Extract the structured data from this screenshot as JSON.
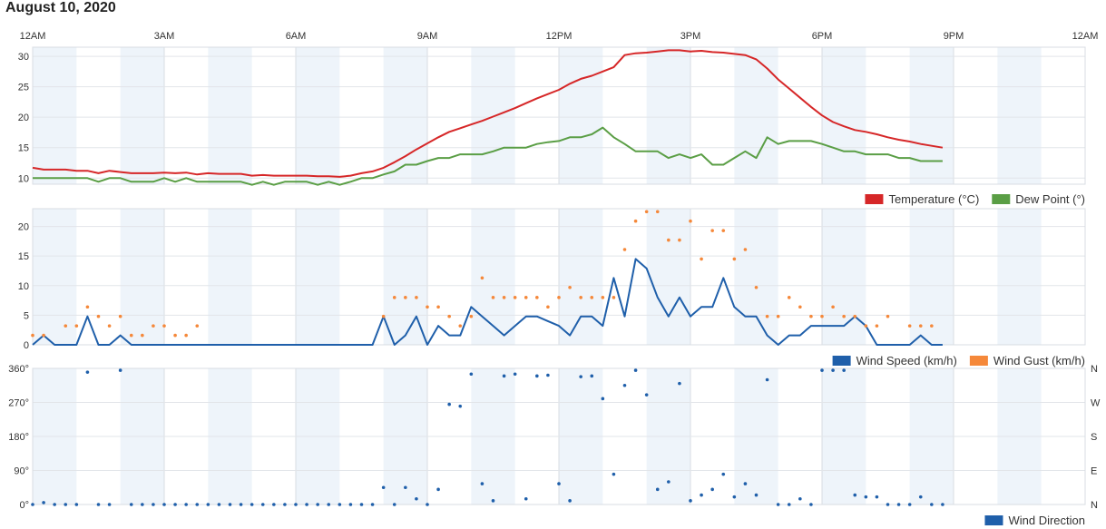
{
  "page": {
    "title": "August 10, 2020"
  },
  "chart_data": [
    {
      "type": "line",
      "panel": "temperature",
      "xlabel": "",
      "ylabel": "",
      "x_tick_labels": [
        "12AM",
        "3AM",
        "6AM",
        "9AM",
        "12PM",
        "3PM",
        "6PM",
        "9PM",
        "12AM"
      ],
      "ylim": [
        9,
        31.5
      ],
      "y_ticks": [
        10,
        15,
        20,
        25,
        30
      ],
      "grid": true,
      "legend": "bottom-right",
      "series": [
        {
          "name": "Temperature (°C)",
          "color": "#d62728",
          "x": [
            0,
            0.25,
            0.5,
            0.75,
            1,
            1.25,
            1.5,
            1.75,
            2,
            2.25,
            2.5,
            2.75,
            3,
            3.25,
            3.5,
            3.75,
            4,
            4.25,
            4.5,
            4.75,
            5,
            5.25,
            5.5,
            5.75,
            6,
            6.25,
            6.5,
            6.75,
            7,
            7.25,
            7.5,
            7.75,
            8,
            8.25,
            8.5,
            8.75,
            9,
            9.25,
            9.5,
            9.75,
            10,
            10.25,
            10.5,
            10.75,
            11,
            11.25,
            11.5,
            11.75,
            12,
            12.25,
            12.5,
            12.75,
            13,
            13.25,
            13.5,
            13.75,
            14,
            14.25,
            14.5,
            14.75,
            15,
            15.25,
            15.5,
            15.75,
            16,
            16.25,
            16.5,
            16.75,
            17,
            17.25,
            17.5,
            17.75,
            18,
            18.25,
            18.5,
            18.75,
            19,
            19.25,
            19.5,
            19.75,
            20,
            20.25,
            20.5,
            20.75
          ],
          "values": [
            11.7,
            11.4,
            11.4,
            11.4,
            11.2,
            11.2,
            10.8,
            11.2,
            11.0,
            10.8,
            10.8,
            10.8,
            10.9,
            10.8,
            10.9,
            10.6,
            10.8,
            10.7,
            10.7,
            10.7,
            10.4,
            10.5,
            10.4,
            10.4,
            10.4,
            10.4,
            10.3,
            10.3,
            10.2,
            10.4,
            10.8,
            11.1,
            11.7,
            12.6,
            13.6,
            14.7,
            15.7,
            16.7,
            17.6,
            18.2,
            18.8,
            19.4,
            20.1,
            20.8,
            21.5,
            22.3,
            23.1,
            23.8,
            24.5,
            25.5,
            26.3,
            26.8,
            27.5,
            28.2,
            30.2,
            30.5,
            30.6,
            30.8,
            31.0,
            31.0,
            30.8,
            30.9,
            30.7,
            30.6,
            30.4,
            30.2,
            29.5,
            28.0,
            26.2,
            24.7,
            23.2,
            21.7,
            20.3,
            19.2,
            18.5,
            17.9,
            17.6,
            17.2,
            16.7,
            16.3,
            16.0,
            15.6,
            15.3,
            15.0
          ]
        },
        {
          "name": "Dew Point (°)",
          "color": "#5a9e45",
          "x": [
            0,
            0.25,
            0.5,
            0.75,
            1,
            1.25,
            1.5,
            1.75,
            2,
            2.25,
            2.5,
            2.75,
            3,
            3.25,
            3.5,
            3.75,
            4,
            4.25,
            4.5,
            4.75,
            5,
            5.25,
            5.5,
            5.75,
            6,
            6.25,
            6.5,
            6.75,
            7,
            7.25,
            7.5,
            7.75,
            8,
            8.25,
            8.5,
            8.75,
            9,
            9.25,
            9.5,
            9.75,
            10,
            10.25,
            10.5,
            10.75,
            11,
            11.25,
            11.5,
            11.75,
            12,
            12.25,
            12.5,
            12.75,
            13,
            13.25,
            13.5,
            13.75,
            14,
            14.25,
            14.5,
            14.75,
            15,
            15.25,
            15.5,
            15.75,
            16,
            16.25,
            16.5,
            16.75,
            17,
            17.25,
            17.5,
            17.75,
            18,
            18.25,
            18.5,
            18.75,
            19,
            19.25,
            19.5,
            19.75,
            20,
            20.25,
            20.5,
            20.75
          ],
          "values": [
            10.0,
            10.0,
            10.0,
            10.0,
            10.0,
            10.0,
            9.4,
            10.0,
            10.0,
            9.4,
            9.4,
            9.4,
            10.0,
            9.4,
            10.0,
            9.4,
            9.4,
            9.4,
            9.4,
            9.4,
            8.9,
            9.4,
            8.9,
            9.4,
            9.4,
            9.4,
            8.9,
            9.4,
            8.9,
            9.4,
            10.0,
            10.0,
            10.6,
            11.1,
            12.2,
            12.2,
            12.8,
            13.3,
            13.3,
            13.9,
            13.9,
            13.9,
            14.4,
            15.0,
            15.0,
            15.0,
            15.6,
            15.9,
            16.1,
            16.7,
            16.7,
            17.2,
            18.3,
            16.7,
            15.6,
            14.4,
            14.4,
            14.4,
            13.3,
            13.9,
            13.3,
            13.9,
            12.2,
            12.2,
            13.3,
            14.4,
            13.3,
            16.7,
            15.6,
            16.1,
            16.1,
            16.1,
            15.6,
            15.0,
            14.4,
            14.4,
            13.9,
            13.9,
            13.9,
            13.3,
            13.3,
            12.8,
            12.8,
            12.8
          ]
        }
      ]
    },
    {
      "type": "line",
      "panel": "wind",
      "xlabel": "",
      "ylabel": "",
      "ylim": [
        0,
        23
      ],
      "y_ticks": [
        0,
        5,
        10,
        15,
        20
      ],
      "grid": true,
      "legend": "bottom-right",
      "series": [
        {
          "name": "Wind Speed (km/h)",
          "color": "#1f5faa",
          "style": "line",
          "x": [
            0,
            0.25,
            0.5,
            0.75,
            1,
            1.25,
            1.5,
            1.75,
            2,
            2.25,
            2.5,
            2.75,
            3,
            3.25,
            3.5,
            3.75,
            4,
            4.25,
            4.5,
            4.75,
            5,
            5.25,
            5.5,
            5.75,
            6,
            6.25,
            6.5,
            6.75,
            7,
            7.25,
            7.5,
            7.75,
            8,
            8.25,
            8.5,
            8.75,
            9,
            9.25,
            9.5,
            9.75,
            10,
            10.25,
            10.5,
            10.75,
            11,
            11.25,
            11.5,
            11.75,
            12,
            12.25,
            12.5,
            12.75,
            13,
            13.25,
            13.5,
            13.75,
            14,
            14.25,
            14.5,
            14.75,
            15,
            15.25,
            15.5,
            15.75,
            16,
            16.25,
            16.5,
            16.75,
            17,
            17.25,
            17.5,
            17.75,
            18,
            18.25,
            18.5,
            18.75,
            19,
            19.25,
            19.5,
            19.75,
            20,
            20.25,
            20.5,
            20.75
          ],
          "values": [
            0,
            1.6,
            0,
            0,
            0,
            4.8,
            0,
            0,
            1.6,
            0,
            0,
            0,
            0,
            0,
            0,
            0,
            0,
            0,
            0,
            0,
            0,
            0,
            0,
            0,
            0,
            0,
            0,
            0,
            0,
            0,
            0,
            0,
            4.8,
            0,
            1.6,
            4.8,
            0,
            3.2,
            1.6,
            1.6,
            6.4,
            4.8,
            3.2,
            1.6,
            3.2,
            4.8,
            4.8,
            4.0,
            3.2,
            1.6,
            4.8,
            4.8,
            3.2,
            11.3,
            4.8,
            14.5,
            12.9,
            8.0,
            4.8,
            8.0,
            4.8,
            6.4,
            6.4,
            11.3,
            6.4,
            4.8,
            4.8,
            1.6,
            0,
            1.6,
            1.6,
            3.2,
            3.2,
            3.2,
            3.2,
            4.8,
            3.2,
            0,
            0,
            0,
            0,
            1.6,
            0,
            0
          ]
        },
        {
          "name": "Wind Gust (km/h)",
          "color": "#f5883a",
          "style": "dots",
          "x": [
            0,
            0.25,
            0.75,
            1,
            1.25,
            1.5,
            1.75,
            2,
            2.25,
            2.5,
            2.75,
            3,
            3.25,
            3.5,
            3.75,
            8,
            8.25,
            8.5,
            8.75,
            9,
            9.25,
            9.5,
            9.75,
            10,
            10.25,
            10.5,
            10.75,
            11,
            11.25,
            11.5,
            11.75,
            12,
            12.25,
            12.5,
            12.75,
            13,
            13.25,
            13.5,
            13.75,
            14,
            14.25,
            14.5,
            14.75,
            15,
            15.25,
            15.5,
            15.75,
            16,
            16.25,
            16.5,
            16.75,
            17,
            17.25,
            17.5,
            17.75,
            18,
            18.25,
            18.5,
            18.75,
            19,
            19.25,
            19.5,
            20,
            20.25,
            20.5
          ],
          "values": [
            1.6,
            1.6,
            3.2,
            3.2,
            6.4,
            4.8,
            3.2,
            4.8,
            1.6,
            1.6,
            3.2,
            3.2,
            1.6,
            1.6,
            3.2,
            4.8,
            8.0,
            8.0,
            8.0,
            6.4,
            6.4,
            4.8,
            3.2,
            4.8,
            11.3,
            8.0,
            8.0,
            8.0,
            8.0,
            8.0,
            6.4,
            8.0,
            9.7,
            8.0,
            8.0,
            8.0,
            8.0,
            16.1,
            20.9,
            22.5,
            22.5,
            17.7,
            17.7,
            20.9,
            14.5,
            19.3,
            19.3,
            14.5,
            16.1,
            9.7,
            4.8,
            4.8,
            8.0,
            6.4,
            4.8,
            4.8,
            6.4,
            4.8,
            4.8,
            3.2,
            3.2,
            4.8,
            3.2,
            3.2,
            3.2
          ]
        }
      ]
    },
    {
      "type": "scatter",
      "panel": "direction",
      "xlabel": "",
      "ylabel": "",
      "ylim": [
        0,
        360
      ],
      "y_ticks": [
        "0°",
        "90°",
        "180°",
        "270°",
        "360°"
      ],
      "y_ticks_right": [
        "N",
        "E",
        "S",
        "W",
        "N"
      ],
      "grid": true,
      "legend": "bottom-right",
      "series": [
        {
          "name": "Wind Direction",
          "color": "#1f5faa",
          "x": [
            0,
            0.25,
            0.5,
            0.75,
            1,
            1.25,
            1.5,
            1.75,
            2,
            2.25,
            2.5,
            2.75,
            3,
            3.25,
            3.5,
            3.75,
            4,
            4.25,
            4.5,
            4.75,
            5,
            5.25,
            5.5,
            5.75,
            6,
            6.25,
            6.5,
            6.75,
            7,
            7.25,
            7.5,
            7.75,
            8,
            8.25,
            8.5,
            8.75,
            9,
            9.25,
            9.5,
            9.75,
            10,
            10.25,
            10.5,
            10.75,
            11,
            11.25,
            11.5,
            11.75,
            12,
            12.25,
            12.5,
            12.75,
            13,
            13.25,
            13.5,
            13.75,
            14,
            14.25,
            14.5,
            14.75,
            15,
            15.25,
            15.5,
            15.75,
            16,
            16.25,
            16.5,
            16.75,
            17,
            17.25,
            17.5,
            17.75,
            18,
            18.25,
            18.5,
            18.75,
            19,
            19.25,
            19.5,
            19.75,
            20,
            20.25,
            20.5,
            20.75
          ],
          "values": [
            0,
            5,
            0,
            0,
            0,
            350,
            0,
            0,
            355,
            0,
            0,
            0,
            0,
            0,
            0,
            0,
            0,
            0,
            0,
            0,
            0,
            0,
            0,
            0,
            0,
            0,
            0,
            0,
            0,
            0,
            0,
            0,
            45,
            0,
            45,
            15,
            0,
            40,
            265,
            260,
            345,
            55,
            10,
            340,
            345,
            15,
            340,
            342,
            55,
            10,
            338,
            340,
            280,
            80,
            315,
            355,
            290,
            40,
            60,
            320,
            10,
            25,
            40,
            80,
            20,
            55,
            25,
            330,
            0,
            0,
            15,
            0,
            355,
            355,
            355,
            25,
            20,
            20,
            0,
            0,
            0,
            20,
            0,
            0
          ]
        }
      ]
    }
  ]
}
